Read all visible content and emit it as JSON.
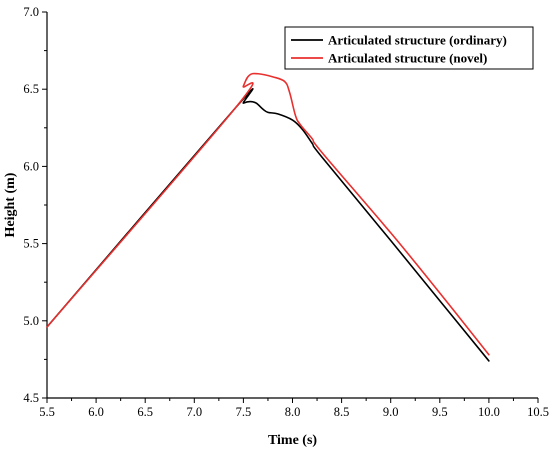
{
  "chart_data": {
    "type": "line",
    "title": "",
    "xlabel": "Time (s)",
    "ylabel": "Height (m)",
    "xlim": [
      5.5,
      10.5
    ],
    "ylim": [
      4.5,
      7.0
    ],
    "xticks": [
      "5.5",
      "6.0",
      "6.5",
      "7.0",
      "7.5",
      "8.0",
      "8.5",
      "9.0",
      "9.5",
      "10.0",
      "10.5"
    ],
    "yticks": [
      "4.5",
      "5.0",
      "5.5",
      "6.0",
      "6.5",
      "7.0"
    ],
    "grid": false,
    "legend_position": "top-right",
    "series": [
      {
        "name": "Articulated structure (ordinary)",
        "color": "#000000",
        "points": [
          [
            5.5,
            4.96
          ],
          [
            7.42,
            6.38
          ],
          [
            7.5,
            6.41
          ],
          [
            7.57,
            6.42
          ],
          [
            7.63,
            6.41
          ],
          [
            7.7,
            6.37
          ],
          [
            7.75,
            6.35
          ],
          [
            7.85,
            6.34
          ],
          [
            8.0,
            6.3
          ],
          [
            8.1,
            6.24
          ],
          [
            8.2,
            6.15
          ],
          [
            8.3,
            6.06
          ],
          [
            9.0,
            5.52
          ],
          [
            9.5,
            5.13
          ],
          [
            10.0,
            4.74
          ]
        ]
      },
      {
        "name": "Articulated structure (novel)",
        "color": "#e8302e",
        "points": [
          [
            5.5,
            4.96
          ],
          [
            7.42,
            6.38
          ],
          [
            7.5,
            6.52
          ],
          [
            7.56,
            6.59
          ],
          [
            7.65,
            6.6
          ],
          [
            7.8,
            6.58
          ],
          [
            7.92,
            6.55
          ],
          [
            7.97,
            6.48
          ],
          [
            8.03,
            6.33
          ],
          [
            8.08,
            6.27
          ],
          [
            8.2,
            6.18
          ],
          [
            8.3,
            6.09
          ],
          [
            9.0,
            5.57
          ],
          [
            9.5,
            5.18
          ],
          [
            10.0,
            4.78
          ]
        ]
      }
    ]
  }
}
